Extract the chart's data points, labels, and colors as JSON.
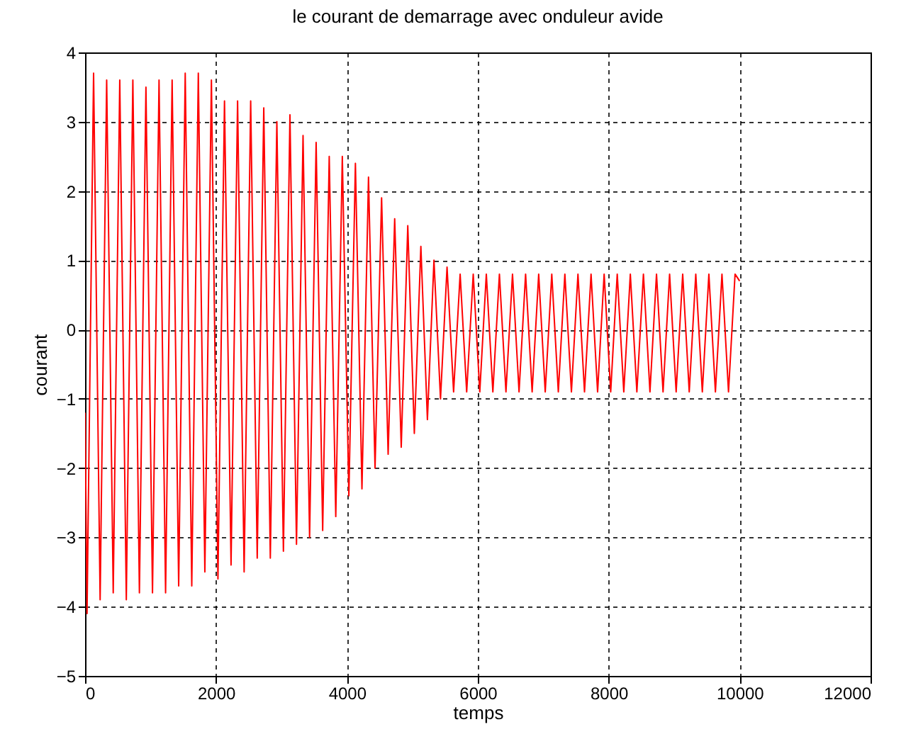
{
  "chart_data": {
    "type": "line",
    "title": "le courant de demarrage avec onduleur avide",
    "xlabel": "temps",
    "ylabel": "courant",
    "x": [
      0,
      30,
      130,
      230,
      330,
      430,
      530,
      630,
      730,
      830,
      930,
      1030,
      1130,
      1230,
      1330,
      1430,
      1530,
      1630,
      1730,
      1830,
      1930,
      2030,
      2130,
      2230,
      2330,
      2430,
      2530,
      2630,
      2730,
      2830,
      2930,
      3030,
      3130,
      3230,
      3330,
      3430,
      3530,
      3630,
      3730,
      3830,
      3930,
      4030,
      4130,
      4230,
      4330,
      4430,
      4530,
      4630,
      4730,
      4830,
      4930,
      5030,
      5130,
      5230,
      5330,
      5430,
      5530,
      5630,
      5730,
      5830,
      5930,
      6030,
      6130,
      6230,
      6330,
      6430,
      6530,
      6630,
      6730,
      6830,
      6930,
      7030,
      7130,
      7230,
      7330,
      7430,
      7530,
      7630,
      7730,
      7830,
      7930,
      8030,
      8130,
      8230,
      8330,
      8430,
      8530,
      8630,
      8730,
      8830,
      8930,
      9030,
      9130,
      9230,
      9330,
      9430,
      9530,
      9630,
      9730,
      9830,
      9930,
      10000
    ],
    "series": [
      {
        "color": "#ff0000",
        "values": [
          -1.2,
          -4.1,
          3.7,
          -3.9,
          3.6,
          -3.8,
          3.6,
          -3.9,
          3.6,
          -3.8,
          3.5,
          -3.8,
          3.6,
          -3.8,
          3.6,
          -3.7,
          3.7,
          -3.7,
          3.7,
          -3.5,
          3.6,
          -3.6,
          3.3,
          -3.4,
          3.3,
          -3.5,
          3.3,
          -3.3,
          3.2,
          -3.3,
          3.0,
          -3.2,
          3.1,
          -3.1,
          2.8,
          -3.0,
          2.7,
          -2.9,
          2.5,
          -2.7,
          2.5,
          -2.4,
          2.4,
          -2.3,
          2.2,
          -2.0,
          1.9,
          -1.8,
          1.6,
          -1.7,
          1.5,
          -1.5,
          1.2,
          -1.3,
          1.0,
          -1.0,
          0.9,
          -0.9,
          0.8,
          -0.9,
          0.8,
          -0.9,
          0.8,
          -0.9,
          0.8,
          -0.9,
          0.8,
          -0.9,
          0.8,
          -0.9,
          0.8,
          -0.9,
          0.8,
          -0.9,
          0.8,
          -0.9,
          0.8,
          -0.9,
          0.8,
          -0.9,
          0.8,
          -0.9,
          0.8,
          -0.9,
          0.8,
          -0.9,
          0.8,
          -0.9,
          0.8,
          -0.9,
          0.8,
          -0.9,
          0.8,
          -0.9,
          0.8,
          -0.9,
          0.8,
          -0.9,
          0.8,
          -0.9,
          0.8,
          0.7
        ]
      }
    ],
    "xlim": [
      0,
      12000
    ],
    "xticks": [
      0,
      2000,
      4000,
      6000,
      8000,
      10000,
      12000
    ],
    "ylim": [
      -5,
      4
    ],
    "yticks": [
      -5,
      -4,
      -3,
      -2,
      -1,
      0,
      1,
      2,
      3,
      4
    ],
    "grid": true
  }
}
